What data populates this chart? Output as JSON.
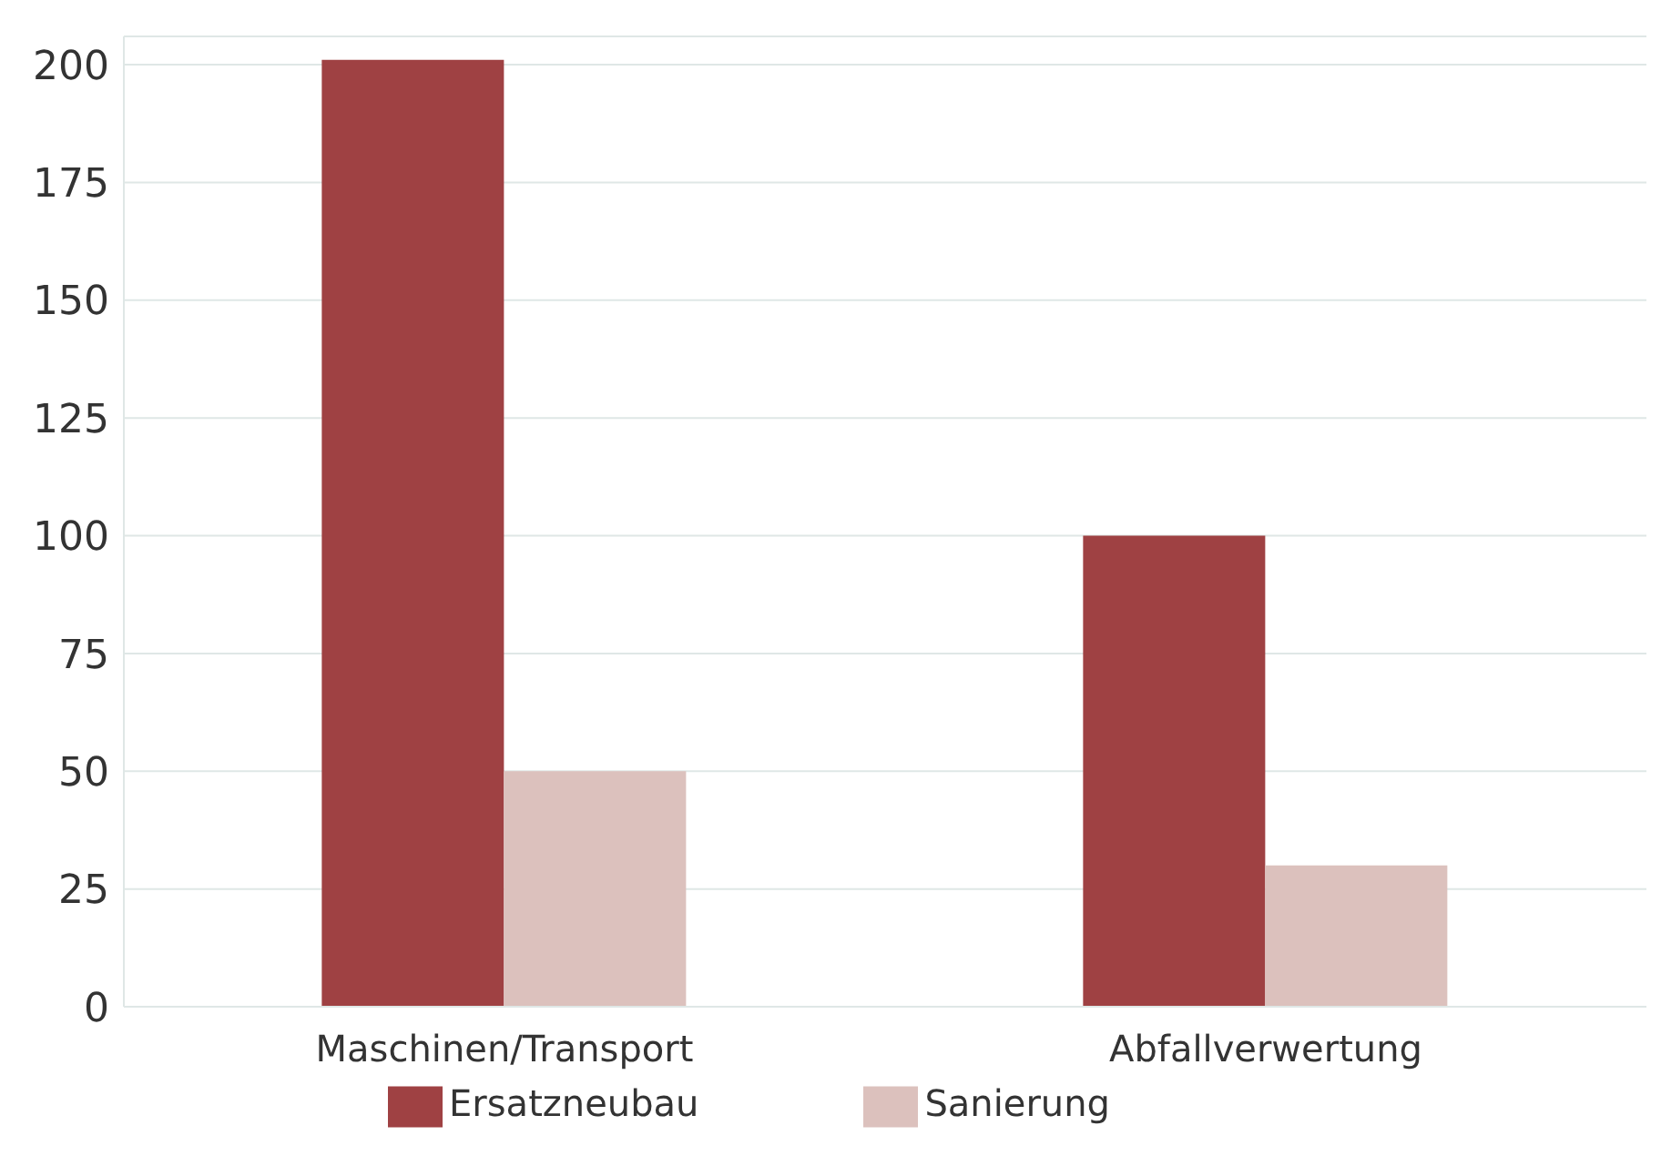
{
  "chart_data": {
    "type": "bar",
    "categories": [
      "Maschinen/Transport",
      "Abfallverwertung"
    ],
    "series": [
      {
        "name": "Ersatzneubau",
        "color": "#9f4143",
        "values": [
          201,
          100
        ]
      },
      {
        "name": "Sanierung",
        "color": "#dcc1bd",
        "values": [
          50,
          30
        ]
      }
    ],
    "ylim": [
      0,
      206
    ],
    "yticks": [
      0,
      25,
      50,
      75,
      100,
      125,
      150,
      175,
      200
    ],
    "grid": "y",
    "legend": "bottom"
  }
}
